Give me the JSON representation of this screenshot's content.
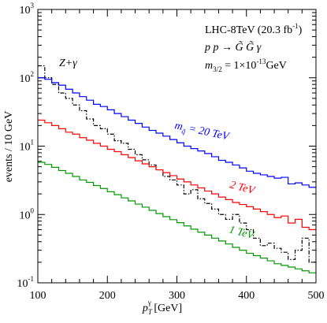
{
  "chart_data": {
    "type": "line",
    "title": "",
    "xlabel": "p_T^γ [GeV]",
    "ylabel": "events / 10 GeV",
    "xlim": [
      100,
      500
    ],
    "ylim": [
      0.1,
      1000
    ],
    "y_scale": "log",
    "grid": false,
    "x_ticks": [
      "100",
      "200",
      "300",
      "400",
      "500"
    ],
    "y_ticks": [
      {
        "base": "10",
        "exp": "-1",
        "value": 0.1
      },
      {
        "base": "10",
        "exp": "0",
        "value": 1
      },
      {
        "base": "10",
        "exp": "1",
        "value": 10
      },
      {
        "base": "10",
        "exp": "2",
        "value": 100
      },
      {
        "base": "10",
        "exp": "3",
        "value": 1000
      }
    ],
    "annotations": {
      "line1": "LHC-8TeV (20.3 fb",
      "line1_sup": "-1",
      "line1_end": ")",
      "line2": "p p → G̃ G̃ γ",
      "line3_prefix": "m",
      "line3_sub": "3/2",
      "line3_mid": " = 1×10",
      "line3_sup": "-13",
      "line3_unit": "GeV"
    },
    "series_labels": {
      "zgamma": "Z+γ",
      "blue_prefix": "m",
      "blue_sub": "q̃",
      "blue_suffix": " = 20 TeV",
      "red": "2 TeV",
      "green": "1 TeV"
    },
    "x_bin_edges": [
      100,
      110,
      120,
      130,
      140,
      150,
      160,
      170,
      180,
      190,
      200,
      210,
      220,
      230,
      240,
      250,
      260,
      270,
      280,
      290,
      300,
      310,
      320,
      330,
      340,
      350,
      360,
      370,
      380,
      390,
      400,
      410,
      420,
      430,
      440,
      450,
      460,
      470,
      480,
      490,
      500
    ],
    "series": [
      {
        "key": "zgamma",
        "color": "#000000",
        "style": "dash-dot",
        "values": [
          150,
          100,
          80,
          60,
          50,
          40,
          33,
          25,
          20,
          18,
          15,
          12,
          11,
          9,
          7.5,
          6.3,
          5.3,
          4.5,
          3.6,
          3.2,
          2.7,
          2.0,
          2.3,
          1.7,
          1.45,
          1.2,
          1.0,
          0.85,
          1.0,
          0.75,
          0.6,
          0.45,
          0.35,
          0.38,
          0.32,
          0.28,
          0.22,
          0.3,
          0.45,
          0.2
        ]
      },
      {
        "key": "blue",
        "color": "#0000ff",
        "style": "solid",
        "values": [
          100,
          95,
          85,
          78,
          68,
          60,
          53,
          47,
          41,
          38,
          34,
          30,
          27,
          24,
          21.5,
          19,
          17,
          15.5,
          14,
          12.5,
          11.2,
          10,
          9.2,
          8.5,
          7.8,
          7.0,
          6.2,
          5.8,
          5.3,
          4.8,
          4.3,
          4.0,
          3.8,
          3.6,
          3.4,
          3.5,
          2.8,
          2.9,
          2.7,
          2.5
        ]
      },
      {
        "key": "red",
        "color": "#ff0000",
        "style": "solid",
        "values": [
          24,
          22,
          20,
          18,
          16,
          15,
          13.3,
          12.2,
          11,
          10,
          9,
          8.3,
          7.5,
          6.8,
          6.1,
          5.5,
          5.0,
          4.5,
          4.1,
          3.7,
          3.3,
          3.0,
          2.7,
          2.45,
          2.2,
          2.0,
          1.8,
          1.65,
          1.5,
          1.4,
          1.3,
          1.2,
          1.1,
          1.0,
          0.9,
          0.95,
          0.75,
          0.85,
          0.65,
          0.6
        ]
      },
      {
        "key": "green",
        "color": "#009900",
        "style": "solid",
        "values": [
          5.8,
          5.4,
          4.9,
          4.4,
          4.0,
          3.6,
          3.2,
          2.95,
          2.65,
          2.4,
          2.15,
          1.95,
          1.75,
          1.58,
          1.42,
          1.28,
          1.15,
          1.03,
          0.93,
          0.84,
          0.76,
          0.68,
          0.61,
          0.55,
          0.5,
          0.45,
          0.41,
          0.37,
          0.33,
          0.3,
          0.27,
          0.25,
          0.23,
          0.21,
          0.19,
          0.18,
          0.17,
          0.16,
          0.15,
          0.14
        ]
      }
    ]
  }
}
